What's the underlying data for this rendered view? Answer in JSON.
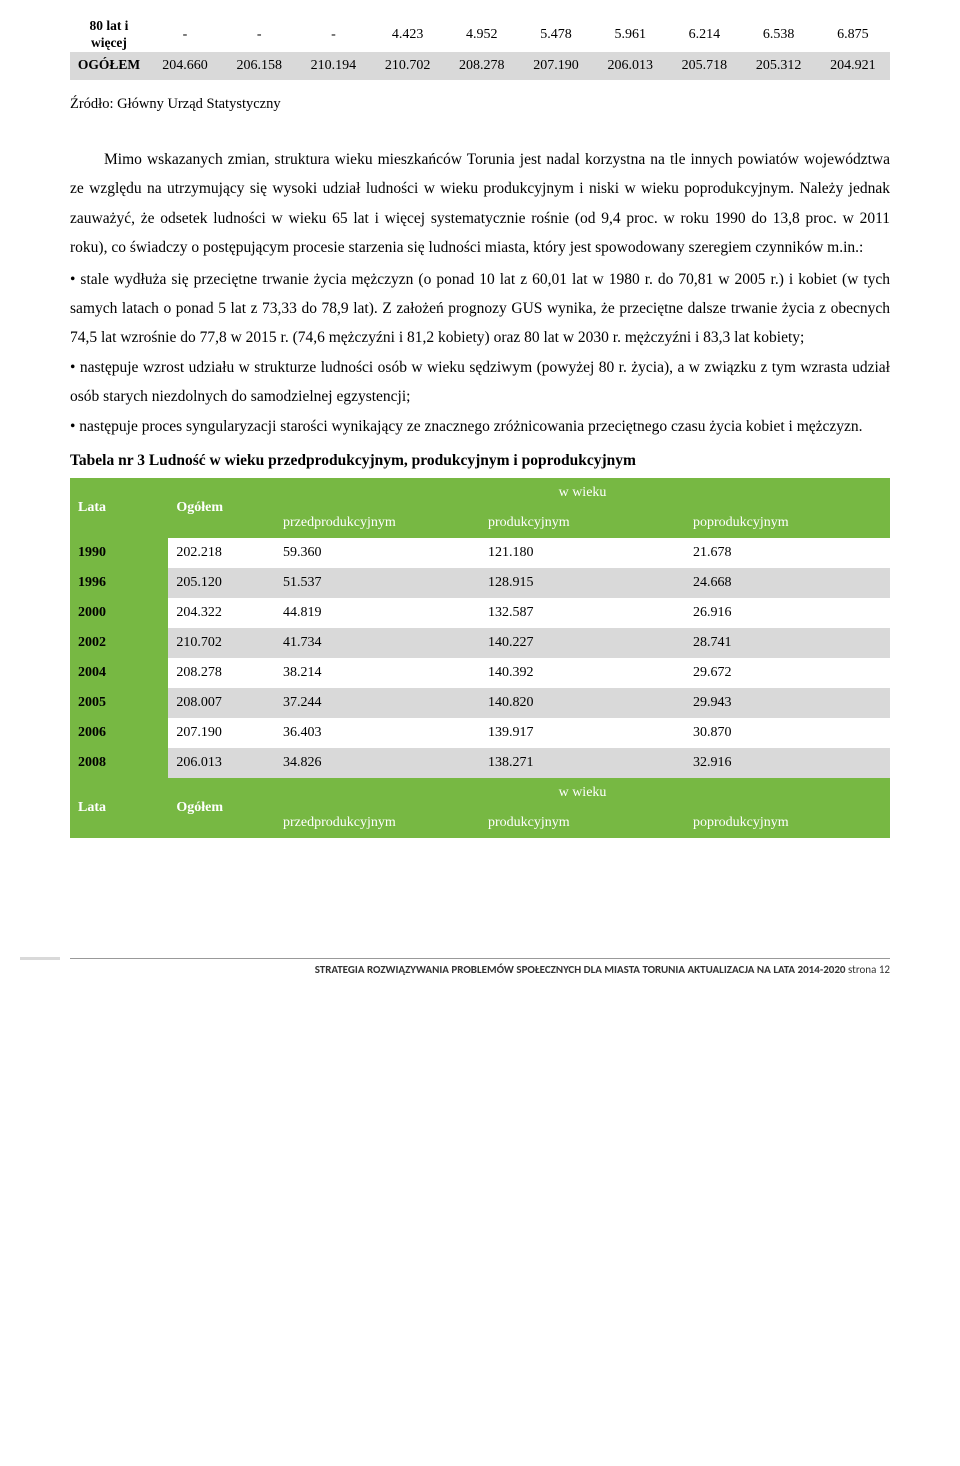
{
  "table1": {
    "rows": [
      {
        "label_lines": [
          "80 lat i",
          "więcej"
        ],
        "cells": [
          "-",
          "-",
          "-",
          "4.423",
          "4.952",
          "5.478",
          "5.961",
          "6.214",
          "6.538",
          "6.875"
        ],
        "cls": "rowA"
      },
      {
        "label_lines": [
          "OGÓŁEM"
        ],
        "cells": [
          "204.660",
          "206.158",
          "210.194",
          "210.702",
          "208.278",
          "207.190",
          "206.013",
          "205.718",
          "205.312",
          "204.921"
        ],
        "cls": "rowB"
      }
    ]
  },
  "source": "Źródło: Główny Urząd Statystyczny",
  "para1": "Mimo wskazanych zmian, struktura wieku mieszkańców Torunia jest nadal korzystna na tle innych powiatów województwa ze względu na utrzymujący się wysoki udział ludności w wieku produkcyjnym i niski w wieku poprodukcyjnym. Należy jednak zauważyć, że odsetek ludności w wieku 65 lat i więcej systematycznie rośnie (od 9,4 proc. w roku 1990 do 13,8 proc. w 2011 roku), co świadczy o postępującym procesie starzenia się ludności miasta, który jest spowodowany szeregiem czynników m.in.:",
  "b1": "• stale wydłuża się przeciętne trwanie życia mężczyzn (o ponad 10 lat z 60,01 lat w 1980 r. do 70,81 w 2005 r.) i kobiet (w tych samych latach o ponad 5 lat z 73,33 do 78,9 lat). Z założeń prognozy GUS wynika, że przeciętne dalsze trwanie życia z obecnych 74,5 lat wzrośnie do 77,8 w 2015 r. (74,6 mężczyźni i 81,2 kobiety) oraz 80 lat w 2030 r. mężczyźni i 83,3 lat kobiety;",
  "b2": "• następuje wzrost udziału w strukturze ludności osób w wieku sędziwym (powyżej 80 r. życia), a w związku z tym wzrasta udział osób starych niezdolnych do samodzielnej egzystencji;",
  "b3": "• następuje proces syngularyzacji starości wynikający ze znacznego zróżnicowania przeciętnego czasu życia kobiet i mężczyzn.",
  "table2_title": "Tabela nr 3 Ludność w wieku przedprodukcyjnym, produkcyjnym i poprodukcyjnym",
  "table2": {
    "header_top": "w wieku",
    "header_lata": "Lata",
    "header_ogolem": "Ogółem",
    "header_cols": [
      "przedprodukcyjnym",
      "produkcyjnym",
      "poprodukcyjnym"
    ],
    "rows": [
      {
        "lata": "1990",
        "ogolem": "202.218",
        "c": [
          "59.360",
          "121.180",
          "21.678"
        ],
        "cls": "rowW"
      },
      {
        "lata": "1996",
        "ogolem": "205.120",
        "c": [
          "51.537",
          "128.915",
          "24.668"
        ],
        "cls": "rowG"
      },
      {
        "lata": "2000",
        "ogolem": "204.322",
        "c": [
          "44.819",
          "132.587",
          "26.916"
        ],
        "cls": "rowW"
      },
      {
        "lata": "2002",
        "ogolem": "210.702",
        "c": [
          "41.734",
          "140.227",
          "28.741"
        ],
        "cls": "rowG"
      },
      {
        "lata": "2004",
        "ogolem": "208.278",
        "c": [
          "38.214",
          "140.392",
          "29.672"
        ],
        "cls": "rowW"
      },
      {
        "lata": "2005",
        "ogolem": "208.007",
        "c": [
          "37.244",
          "140.820",
          "29.943"
        ],
        "cls": "rowG"
      },
      {
        "lata": "2006",
        "ogolem": "207.190",
        "c": [
          "36.403",
          "139.917",
          "30.870"
        ],
        "cls": "rowW"
      },
      {
        "lata": "2008",
        "ogolem": "206.013",
        "c": [
          "34.826",
          "138.271",
          "32.916"
        ],
        "cls": "rowG"
      }
    ]
  },
  "footer_bold": "STRATEGIA ROZWIĄZYWANIA PROBLEMÓW SPOŁECZNYCH DLA MIASTA TORUNIA AKTUALIZACJA NA LATA 2014-2020 ",
  "footer_plain": "strona 12"
}
